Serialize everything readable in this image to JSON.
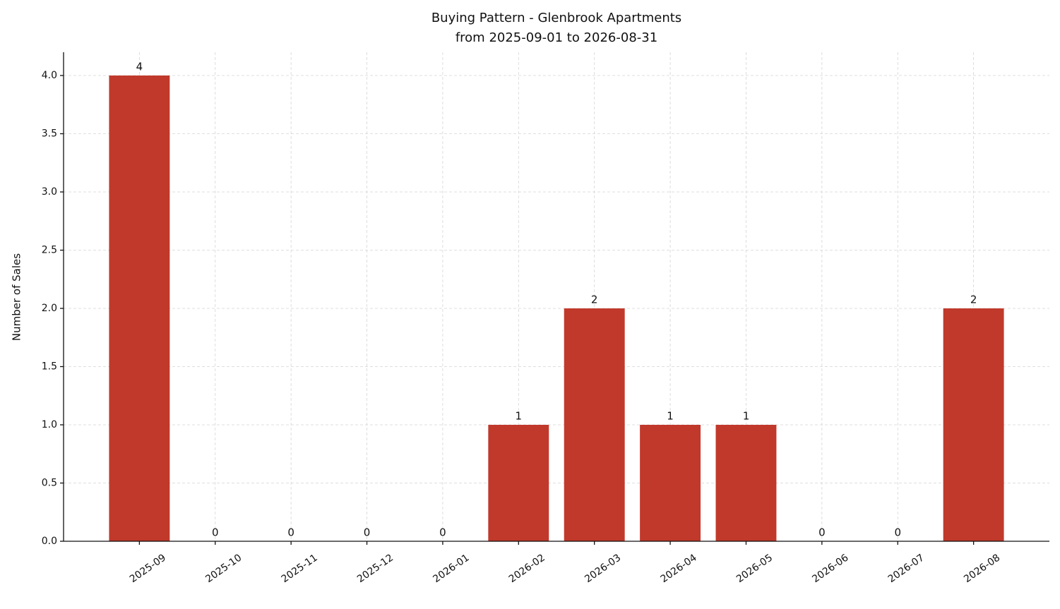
{
  "chart_data": {
    "type": "bar",
    "title": "Buying Pattern - Glenbrook Apartments",
    "subtitle": "from 2025-09-01 to 2026-08-31",
    "ylabel": "Number of Sales",
    "categories": [
      "2025-09",
      "2025-10",
      "2025-11",
      "2025-12",
      "2026-01",
      "2026-02",
      "2026-03",
      "2026-04",
      "2026-05",
      "2026-06",
      "2026-07",
      "2026-08"
    ],
    "values": [
      4,
      0,
      0,
      0,
      0,
      1,
      2,
      1,
      1,
      0,
      0,
      2
    ],
    "color": "#c0392b",
    "ylim": [
      0,
      4.2
    ],
    "yticks": [
      {
        "value": 0,
        "label": "0.0"
      },
      {
        "value": 0.5,
        "label": "0.5"
      },
      {
        "value": 1,
        "label": "1.0"
      },
      {
        "value": 1.5,
        "label": "1.5"
      },
      {
        "value": 2,
        "label": "2.0"
      },
      {
        "value": 2.5,
        "label": "2.5"
      },
      {
        "value": 3,
        "label": "3.0"
      },
      {
        "value": 3.5,
        "label": "3.5"
      },
      {
        "value": 4,
        "label": "4.0"
      }
    ],
    "grid": true
  }
}
